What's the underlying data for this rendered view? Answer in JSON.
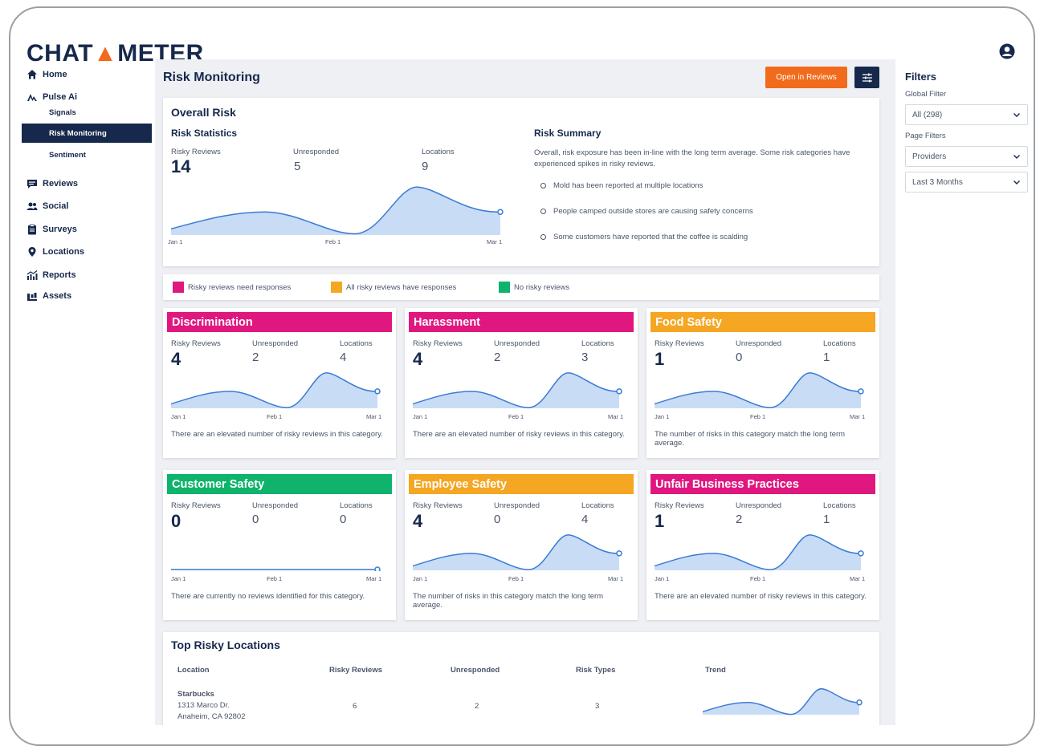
{
  "app": {
    "logo": "CHATMETER"
  },
  "sidebar": {
    "items": [
      {
        "label": "Home",
        "icon": "home-icon"
      },
      {
        "label": "Pulse Ai",
        "icon": "pulse-icon"
      },
      {
        "label": "Signals",
        "sub": true
      },
      {
        "label": "Risk Monitoring",
        "sub": true,
        "active": true
      },
      {
        "label": "Sentiment",
        "sub": true
      },
      {
        "label": "Reviews",
        "icon": "reviews-icon"
      },
      {
        "label": "Social",
        "icon": "social-icon"
      },
      {
        "label": "Surveys",
        "icon": "surveys-icon"
      },
      {
        "label": "Locations",
        "icon": "location-pin-icon"
      },
      {
        "label": "Reports",
        "icon": "reports-icon"
      },
      {
        "label": "Assets",
        "icon": "assets-icon"
      }
    ]
  },
  "header": {
    "title": "Risk Monitoring",
    "open_button": "Open in Reviews",
    "settings_icon": "sliders-icon"
  },
  "overall": {
    "title": "Overall Risk",
    "stats_title": "Risk Statistics",
    "risky_label": "Risky Reviews",
    "risky_value": "14",
    "unresp_label": "Unresponded",
    "unresp_value": "5",
    "loc_label": "Locations",
    "loc_value": "9",
    "axis": [
      "Jan 1",
      "Feb 1",
      "Mar 1"
    ],
    "summary_title": "Risk Summary",
    "summary_text": "Overall, risk exposure has been in-line with the long term average. Some risk categories have experienced spikes in risky reviews.",
    "bullets": [
      "Mold has been reported at multiple locations",
      "People camped outside stores are causing safety concerns",
      "Some customers have reported that the coffee is scalding"
    ]
  },
  "legend": [
    {
      "label": "Risky reviews need responses",
      "color": "#e0177f"
    },
    {
      "label": "All risky reviews have responses",
      "color": "#f5a623"
    },
    {
      "label": "No risky reviews",
      "color": "#0fb36b"
    }
  ],
  "colors": {
    "navy": "#16284b",
    "orange": "#f26a1b",
    "pink": "#e0177f",
    "amber": "#f5a623",
    "green": "#0fb36b",
    "chart_line": "#3a7bd5",
    "chart_fill": "#c9dcf5"
  },
  "categories": [
    {
      "title": "Discrimination",
      "color": "#e0177f",
      "risky_label": "Risky Reviews",
      "unresp_label": "Unresponded",
      "loc_label": "Locations",
      "risky": "4",
      "unresp": "2",
      "loc": "4",
      "desc": "There are an elevated number of risky reviews in this category.",
      "flat": false,
      "axis": [
        "Jan 1",
        "Feb 1",
        "Mar 1"
      ]
    },
    {
      "title": "Harassment",
      "color": "#e0177f",
      "risky_label": "Risky Reviews",
      "unresp_label": "Unresponded",
      "loc_label": "Locations",
      "risky": "4",
      "unresp": "2",
      "loc": "3",
      "desc": "There are an elevated number of risky reviews in this category.",
      "flat": false,
      "axis": [
        "Jan 1",
        "Feb 1",
        "Mar 1"
      ]
    },
    {
      "title": "Food Safety",
      "color": "#f5a623",
      "risky_label": "Risky Reviews",
      "unresp_label": "Unresponded",
      "loc_label": "Locations",
      "risky": "1",
      "unresp": "0",
      "loc": "1",
      "desc": "The number of risks in this category match the long term average.",
      "flat": false,
      "axis": [
        "Jan 1",
        "Feb 1",
        "Mar 1"
      ]
    },
    {
      "title": "Customer Safety",
      "color": "#0fb36b",
      "risky_label": "Risky Reviews",
      "unresp_label": "Unresponded",
      "loc_label": "Locations",
      "risky": "0",
      "unresp": "0",
      "loc": "0",
      "desc": "There are currently no reviews identified for this category.",
      "flat": true,
      "axis": [
        "Jan 1",
        "Feb 1",
        "Mar 1"
      ]
    },
    {
      "title": "Employee Safety",
      "color": "#f5a623",
      "risky_label": "Risky Reviews",
      "unresp_label": "Unresponded",
      "loc_label": "Locations",
      "risky": "4",
      "unresp": "0",
      "loc": "4",
      "desc": "The number of risks in this category match the long term average.",
      "flat": false,
      "axis": [
        "Jan 1",
        "Feb 1",
        "Mar 1"
      ]
    },
    {
      "title": "Unfair Business Practices",
      "color": "#e0177f",
      "risky_label": "Risky Reviews",
      "unresp_label": "Unresponded",
      "loc_label": "Locations",
      "risky": "1",
      "unresp": "2",
      "loc": "1",
      "desc": "There are an elevated number of risky reviews in this category.",
      "flat": false,
      "axis": [
        "Jan 1",
        "Feb 1",
        "Mar 1"
      ]
    }
  ],
  "table": {
    "title": "Top Risky Locations",
    "headers": [
      "Location",
      "Risky Reviews",
      "Unresponded",
      "Risk Types",
      "Trend"
    ],
    "rows": [
      {
        "name": "Starbucks",
        "addr1": "1313 Marco Dr.",
        "addr2": "Anaheim, CA 92802",
        "risky": "6",
        "unresp": "2",
        "types": "3"
      }
    ]
  },
  "filters": {
    "title": "Filters",
    "global_label": "Global Filter",
    "global_value": "All (298)",
    "page_label": "Page Filters",
    "providers_value": "Providers",
    "date_value": "Last 3 Months"
  }
}
